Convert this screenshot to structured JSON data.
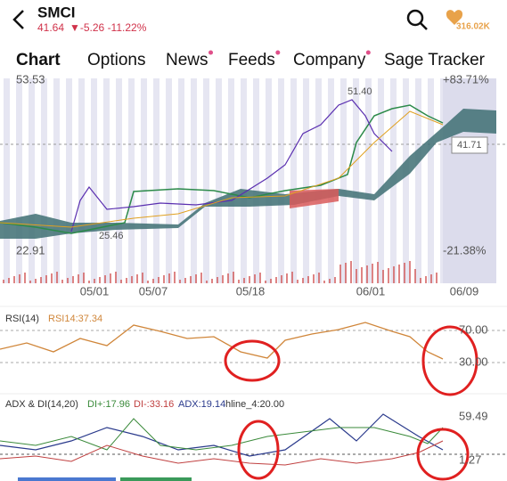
{
  "header": {
    "ticker": "SMCI",
    "price": "41.64",
    "change": "▼-5.26 -11.22%",
    "followers": "316.02K"
  },
  "tabs": [
    "Chart",
    "Options",
    "News",
    "Feeds",
    "Company",
    "Sage Tracker"
  ],
  "main_chart": {
    "top_left": "53.53",
    "top_right": "+83.71%",
    "high_label": "51.40",
    "last_price": "41.71",
    "low_label": "25.46",
    "bottom_left": "22.91",
    "bottom_right": "-21.38%",
    "dates": [
      "05/01",
      "05/07",
      "05/18",
      "06/01",
      "06/09"
    ]
  },
  "rsi_panel": {
    "title": "RSI(14)",
    "value": "RSI14:37.34",
    "upper": "70.00",
    "lower": "30.00"
  },
  "adx_panel": {
    "title": "ADX & DI(14,20)",
    "di_plus": "DI+:17.96",
    "di_minus": "DI-:33.16",
    "adx": "ADX:19.14",
    "hline": "hline_4:20.00",
    "upper": "59.49",
    "lower": "1.27"
  }
}
